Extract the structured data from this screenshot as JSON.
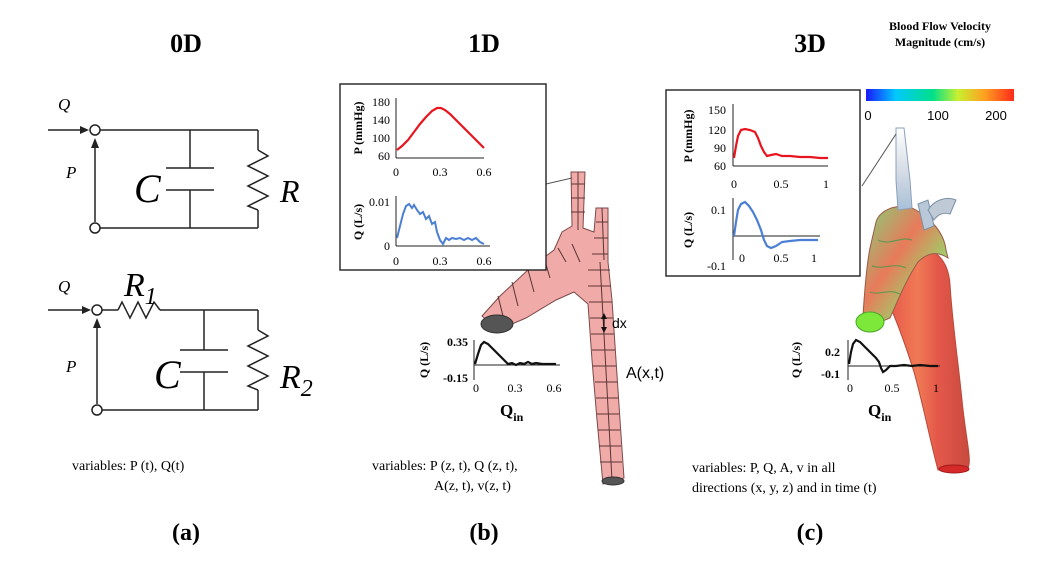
{
  "panels": {
    "a": {
      "heading": "0D",
      "caption": "(a)",
      "circuit1": {
        "flow_label": "Q",
        "pressure_label": "P",
        "capacitor_label": "C",
        "resistor_label": "R"
      },
      "circuit2": {
        "flow_label": "Q",
        "pressure_label": "P",
        "r1_main": "R",
        "r1_sub": "1",
        "capacitor_label": "C",
        "r2_main": "R",
        "r2_sub": "2"
      },
      "variables": "variables:  P (t),  Q(t)"
    },
    "b": {
      "heading": "1D",
      "caption": "(b)",
      "inset": {
        "p_ylabel": "P (mmHg)",
        "p_yticks": [
          "180",
          "140",
          "100",
          "60"
        ],
        "p_xticks": [
          "0",
          "0.3",
          "0.6"
        ],
        "q_ylabel": "Q (L/s)",
        "q_yticks": [
          "0.01",
          "0"
        ],
        "q_xticks": [
          "0",
          "0.3",
          "0.6"
        ]
      },
      "inflow": {
        "ylabel": "Q (L/s)",
        "yticks": [
          "0.35",
          "-0.15"
        ],
        "xticks": [
          "0",
          "0.3",
          "0.6"
        ],
        "title_main": "Q",
        "title_sub": "in"
      },
      "dx_label": "dx",
      "area_label": "A(x,t)",
      "variables_line1": "variables:   P (z, t),  Q (z, t),",
      "variables_line2": "A(z, t),  v(z, t)"
    },
    "c": {
      "heading": "3D",
      "caption": "(c)",
      "colorbar": {
        "title_line1": "Blood Flow Velocity",
        "title_line2": "Magnitude (cm/s)",
        "ticks": [
          "0",
          "100",
          "200"
        ],
        "colors": [
          "#1a1aff",
          "#00c8ff",
          "#00e08a",
          "#c8f030",
          "#ffa020",
          "#ff2a1a"
        ]
      },
      "inset": {
        "p_ylabel": "P (mmHg)",
        "p_yticks": [
          "150",
          "120",
          "90",
          "60"
        ],
        "p_xticks": [
          "0",
          "0.5",
          "1"
        ],
        "q_ylabel": "Q (L/s)",
        "q_yticks": [
          "0.1",
          "0",
          "-0.1"
        ],
        "q_xticks": [
          "0",
          "0.5",
          "1"
        ]
      },
      "inflow": {
        "ylabel": "Q (L/s)",
        "yticks": [
          "0.2",
          "-0.1"
        ],
        "xticks": [
          "0",
          "0.5",
          "1"
        ],
        "title_main": "Q",
        "title_sub": "in"
      },
      "variables_line1": "variables:   P,  Q,  A,  v in all",
      "variables_line2": "directions  (x,  y,  z)  and  in time  (t)"
    }
  },
  "colors": {
    "pressure_curve": "#e8141e",
    "flow_curve": "#4a7fd4",
    "inflow_curve": "#111111",
    "vessel_fill_1d": "#f0aaa8",
    "vessel_grid_1d": "#5a3535"
  }
}
